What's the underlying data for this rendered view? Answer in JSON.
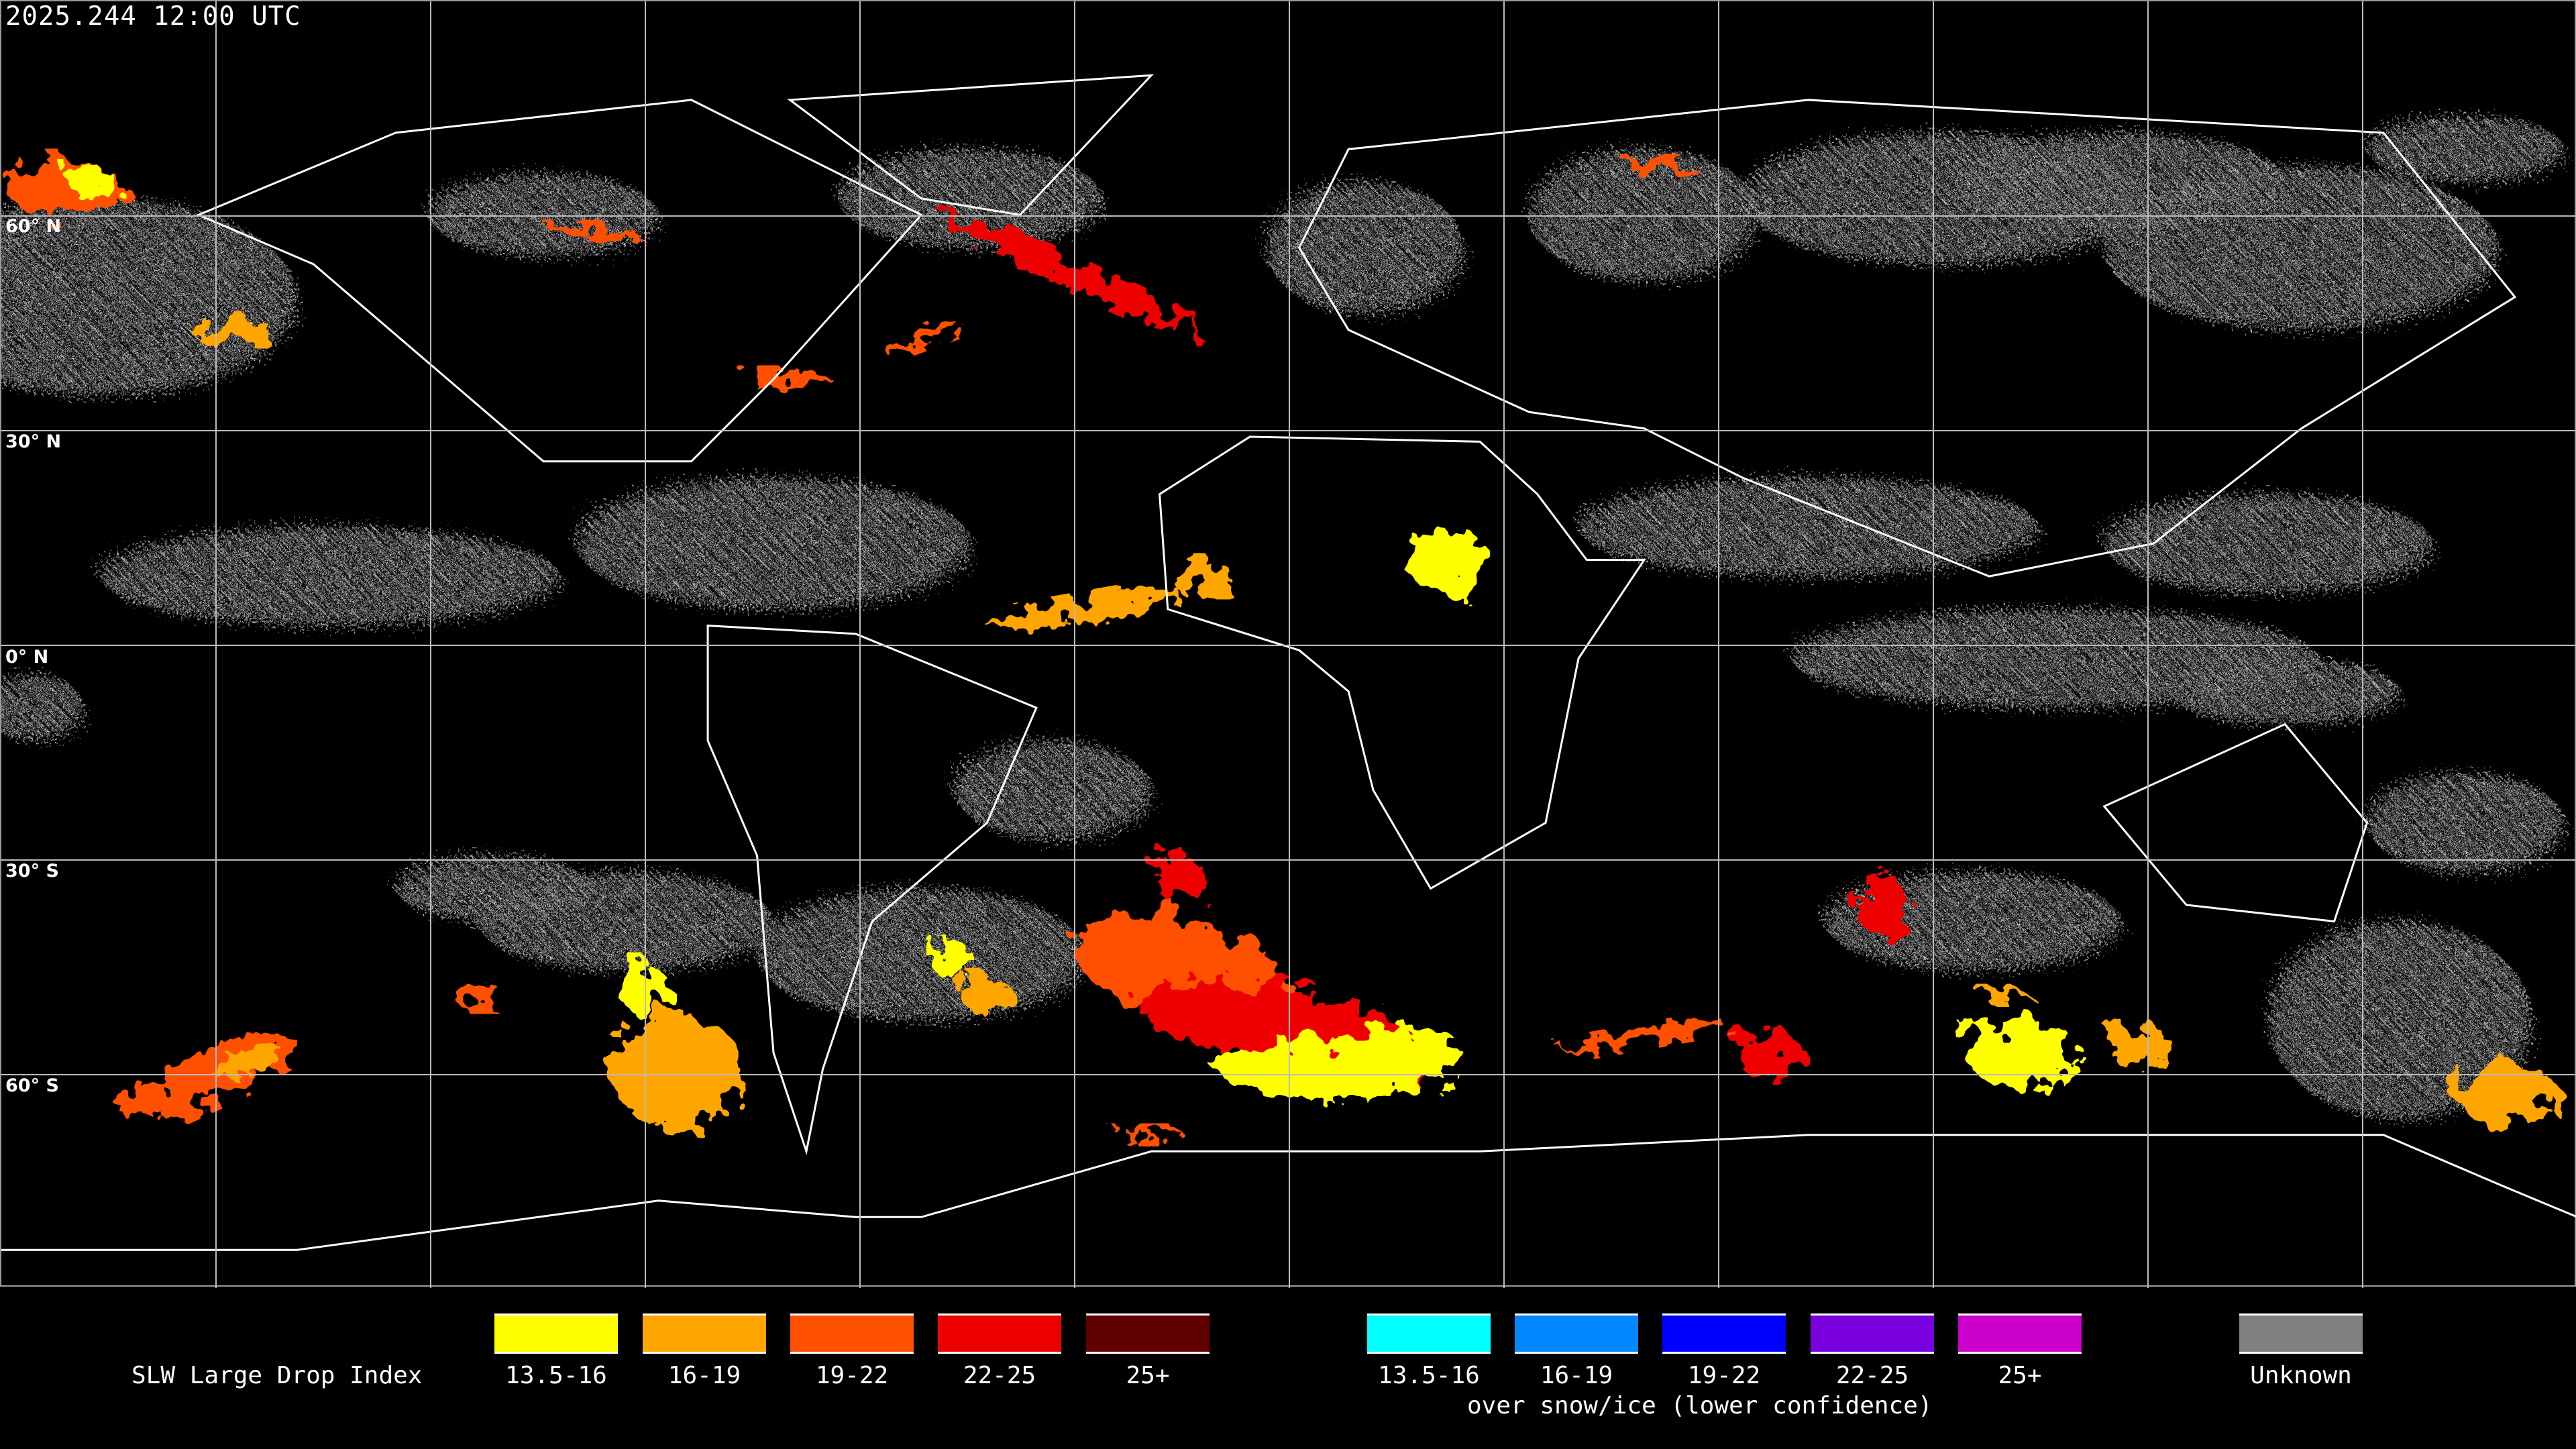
{
  "header": {
    "timestamp": "2025.244 12:00 UTC"
  },
  "map": {
    "lat_labels": [
      "60° N",
      "30° N",
      "0° N",
      "30° S",
      "60° S"
    ],
    "grid_spacing_deg": 30,
    "background_color": "#000000",
    "coastline_color": "#ffffff"
  },
  "legend": {
    "title": "SLW Large Drop Index",
    "liquid": [
      {
        "label": "13.5-16",
        "color": "#ffff00"
      },
      {
        "label": "16-19",
        "color": "#ffa500"
      },
      {
        "label": "19-22",
        "color": "#ff5000"
      },
      {
        "label": "22-25",
        "color": "#ee0000"
      },
      {
        "label": "25+",
        "color": "#600000"
      }
    ],
    "snow_ice": [
      {
        "label": "13.5-16",
        "color": "#00ffff"
      },
      {
        "label": "16-19",
        "color": "#0088ff"
      },
      {
        "label": "19-22",
        "color": "#0000ff"
      },
      {
        "label": "22-25",
        "color": "#7700dd"
      },
      {
        "label": "25+",
        "color": "#cc00cc"
      }
    ],
    "snow_ice_caption": "over snow/ice (lower confidence)",
    "unknown": {
      "label": "Unknown",
      "color": "#808080"
    }
  }
}
